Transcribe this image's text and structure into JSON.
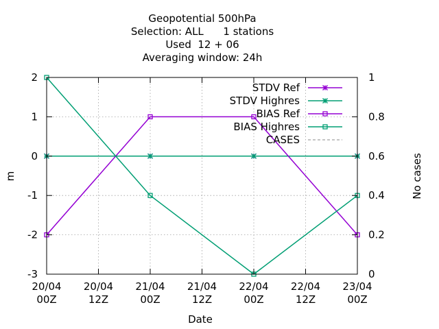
{
  "chart_data": {
    "type": "line",
    "title_lines": [
      "Geopotential 500hPa",
      "Selection: ALL      1 stations",
      "Used  12 + 06",
      "Averaging window: 24h"
    ],
    "xlabel": "Date",
    "ylabel": "m",
    "y2label": "No cases",
    "x_ticks": [
      {
        "top": "20/04",
        "bottom": "00Z"
      },
      {
        "top": "20/04",
        "bottom": "12Z"
      },
      {
        "top": "21/04",
        "bottom": "00Z"
      },
      {
        "top": "21/04",
        "bottom": "12Z"
      },
      {
        "top": "22/04",
        "bottom": "00Z"
      },
      {
        "top": "22/04",
        "bottom": "12Z"
      },
      {
        "top": "23/04",
        "bottom": "00Z"
      }
    ],
    "ylim": [
      -3,
      2
    ],
    "y_ticks": [
      "2",
      "1",
      "0",
      "-1",
      "-2",
      "-3"
    ],
    "y2lim": [
      0,
      1
    ],
    "y2_ticks": [
      "1",
      "0.8",
      "0.6",
      "0.4",
      "0.2",
      "0"
    ],
    "grid": true,
    "legend_position": "top-right",
    "series": [
      {
        "name": "STDV Ref",
        "color": "#9400d3",
        "marker": "star",
        "x_index": [
          0,
          2,
          4,
          6
        ],
        "values": [
          0,
          0,
          0,
          0
        ]
      },
      {
        "name": "STDV Highres",
        "color": "#009e73",
        "marker": "star",
        "x_index": [
          0,
          2,
          4,
          6
        ],
        "values": [
          0,
          0,
          0,
          0
        ]
      },
      {
        "name": "BIAS Ref",
        "color": "#9400d3",
        "marker": "square",
        "x_index": [
          0,
          2,
          4,
          6
        ],
        "values": [
          -2,
          1,
          1,
          -2
        ]
      },
      {
        "name": "BIAS Highres",
        "color": "#009e73",
        "marker": "square",
        "x_index": [
          0,
          2,
          4,
          6
        ],
        "values": [
          2,
          -1,
          -3,
          -1
        ]
      },
      {
        "name": "CASES",
        "color": "#888888",
        "marker": "dashed",
        "x_index": [
          0,
          2,
          4,
          6
        ],
        "values": [
          1,
          1,
          1,
          1
        ],
        "axis": "y2"
      }
    ]
  }
}
